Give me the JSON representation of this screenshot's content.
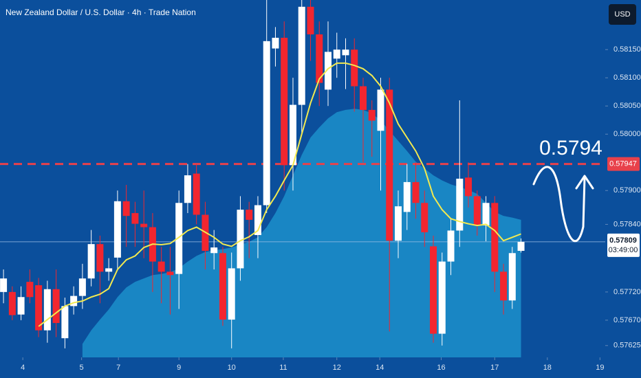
{
  "chart_data": {
    "type": "candlestick",
    "title": "New Zealand Dollar / U.S. Dollar · 4h · Trade Nation",
    "currency": "USD",
    "up_color": "#ffffff",
    "down_color": "#f2262f",
    "ylim": [
      0.57604,
      0.58238
    ],
    "xlim": [
      -0.4,
      68.6
    ],
    "yticks": [
      {
        "value": 0.5815,
        "label": "0.58150"
      },
      {
        "value": 0.581,
        "label": "0.58100"
      },
      {
        "value": 0.5805,
        "label": "0.58050"
      },
      {
        "value": 0.58,
        "label": "0.58000"
      },
      {
        "value": 0.579,
        "label": "0.57900"
      },
      {
        "value": 0.5784,
        "label": "0.57840"
      },
      {
        "value": 0.5772,
        "label": "0.57720"
      },
      {
        "value": 0.5767,
        "label": "0.57670"
      },
      0.57625
    ],
    "xticks": [
      {
        "value": 2.2,
        "label": "4"
      },
      {
        "value": 8.9,
        "label": "5"
      },
      {
        "value": 13.1,
        "label": "7"
      },
      {
        "value": 20,
        "label": "9"
      },
      {
        "value": 26,
        "label": "10"
      },
      {
        "value": 31.9,
        "label": "11"
      },
      {
        "value": 38,
        "label": "12"
      },
      {
        "value": 42.9,
        "label": "14"
      },
      {
        "value": 49.9,
        "label": "16"
      },
      {
        "value": 56,
        "label": "17"
      },
      {
        "value": 62,
        "label": "18"
      },
      {
        "value": 68,
        "label": "19"
      }
    ],
    "open": [
      0.5772,
      0.5772,
      0.5768,
      0.57738,
      0.57732,
      0.57652,
      0.57725,
      0.57638,
      0.57695,
      0.57713,
      0.57744,
      0.57805,
      0.57756,
      0.57781,
      0.57881,
      0.5786,
      0.57841,
      0.57835,
      0.57774,
      0.57756,
      0.57752,
      0.57878,
      0.5793,
      0.57857,
      0.57789,
      0.57789,
      0.57671,
      0.57762,
      0.57866,
      0.57821,
      0.57874,
      0.58152,
      0.58171,
      0.57945,
      0.58052,
      0.58226,
      0.58177,
      0.58079,
      0.58134,
      0.5814,
      0.5815,
      0.58085,
      0.58043,
      0.58006,
      0.58079,
      0.57811,
      0.57862,
      0.57915,
      0.57878,
      0.57801,
      0.57646,
      0.57774,
      0.57829,
      0.57923,
      0.5789,
      0.57838,
      0.57878,
      0.57756,
      0.57705,
      0.57793
    ],
    "high": [
      0.5776,
      0.5773,
      0.5773,
      0.5776,
      0.57745,
      0.5774,
      0.5776,
      0.5771,
      0.5773,
      0.5777,
      0.5783,
      0.5782,
      0.5778,
      0.579,
      0.5791,
      0.5788,
      0.579,
      0.5786,
      0.578,
      0.578,
      0.579,
      0.57947,
      0.57947,
      0.5788,
      0.5783,
      0.578,
      0.5779,
      0.5789,
      0.5788,
      0.5789,
      0.58238,
      0.5819,
      0.582,
      0.581,
      0.58238,
      0.58238,
      0.582,
      0.582,
      0.5818,
      0.5817,
      0.5817,
      0.581,
      0.5806,
      0.581,
      0.581,
      0.579,
      0.57947,
      0.5795,
      0.579,
      0.5782,
      0.5779,
      0.5785,
      0.5806,
      0.5795,
      0.579,
      0.5789,
      0.5789,
      0.5777,
      0.578,
      0.57815
    ],
    "low": [
      0.577,
      0.5767,
      0.5767,
      0.577,
      0.5764,
      0.5763,
      0.5764,
      0.5762,
      0.5768,
      0.5769,
      0.5773,
      0.577,
      0.5774,
      0.5776,
      0.578,
      0.578,
      0.5778,
      0.5772,
      0.577,
      0.5768,
      0.5769,
      0.5786,
      0.5784,
      0.5776,
      0.5776,
      0.5766,
      0.5762,
      0.5774,
      0.5778,
      0.5778,
      0.5786,
      0.5812,
      0.579,
      0.579,
      0.58,
      0.5813,
      0.5805,
      0.5805,
      0.581,
      0.5808,
      0.5804,
      0.5795,
      0.5796,
      0.579,
      0.5765,
      0.5778,
      0.5783,
      0.5785,
      0.578,
      0.5763,
      0.57625,
      0.5775,
      0.578,
      0.5787,
      0.5782,
      0.5781,
      0.5772,
      0.5768,
      0.5769,
      0.5779
    ],
    "close": [
      0.57744,
      0.57679,
      0.57711,
      0.57711,
      0.57652,
      0.57725,
      0.57665,
      0.57695,
      0.57713,
      0.57744,
      0.57805,
      0.57756,
      0.57762,
      0.57881,
      0.57855,
      0.57841,
      0.57835,
      0.57774,
      0.57756,
      0.5775,
      0.57878,
      0.57927,
      0.57857,
      0.57793,
      0.57799,
      0.57671,
      0.57762,
      0.57866,
      0.57848,
      0.57874,
      0.58165,
      0.58171,
      0.57945,
      0.58052,
      0.58226,
      0.58177,
      0.58091,
      0.58146,
      0.5815,
      0.5815,
      0.58085,
      0.58043,
      0.58024,
      0.58079,
      0.57811,
      0.57872,
      0.57915,
      0.57878,
      0.57826,
      0.57646,
      0.57774,
      0.57829,
      0.57921,
      0.5789,
      0.57838,
      0.57878,
      0.57756,
      0.57705,
      0.57789,
      0.57809
    ],
    "ma": {
      "color": "#f3ea4f",
      "values": [
        null,
        null,
        null,
        null,
        0.57659,
        0.57671,
        0.57683,
        0.57695,
        0.57701,
        0.57704,
        0.57711,
        0.57716,
        0.57726,
        0.5776,
        0.57777,
        0.57784,
        0.57799,
        0.57805,
        0.57804,
        0.57806,
        0.57817,
        0.57829,
        0.57835,
        0.57826,
        0.57817,
        0.57805,
        0.57801,
        0.57811,
        0.57818,
        0.57829,
        0.57866,
        0.5789,
        0.57918,
        0.57945,
        0.58,
        0.58055,
        0.58098,
        0.58116,
        0.58126,
        0.58126,
        0.58122,
        0.58116,
        0.58104,
        0.58085,
        0.58055,
        0.58018,
        0.57994,
        0.5797,
        0.57939,
        0.5789,
        0.57866,
        0.5785,
        0.57845,
        0.57841,
        0.57838,
        0.5784,
        0.57829,
        0.57811,
        0.57817,
        0.57823
      ]
    },
    "area": {
      "color": "#1c8fcb",
      "values": [
        null,
        null,
        null,
        null,
        null,
        null,
        null,
        null,
        null,
        0.57628,
        0.57652,
        0.57671,
        0.57689,
        0.57711,
        0.57728,
        0.57738,
        0.57744,
        0.5775,
        0.57752,
        0.57755,
        0.57762,
        0.57774,
        0.57784,
        0.57791,
        0.57794,
        0.57796,
        0.57799,
        0.57804,
        0.57809,
        0.57817,
        0.57835,
        0.5786,
        0.5789,
        0.57927,
        0.57963,
        0.57994,
        0.58012,
        0.58028,
        0.58039,
        0.58043,
        0.58045,
        0.58043,
        0.58037,
        0.58024,
        0.58006,
        0.57988,
        0.5797,
        0.57951,
        0.57939,
        0.57927,
        0.57918,
        0.57911,
        0.57906,
        0.57901,
        0.57894,
        0.57878,
        0.57862,
        0.57855,
        0.57852,
        0.57848
      ]
    },
    "level": {
      "value": 0.57947,
      "color": "#e8414b"
    },
    "last_price": 0.57809,
    "countdown": "03:49:00",
    "target": 0.5794
  }
}
